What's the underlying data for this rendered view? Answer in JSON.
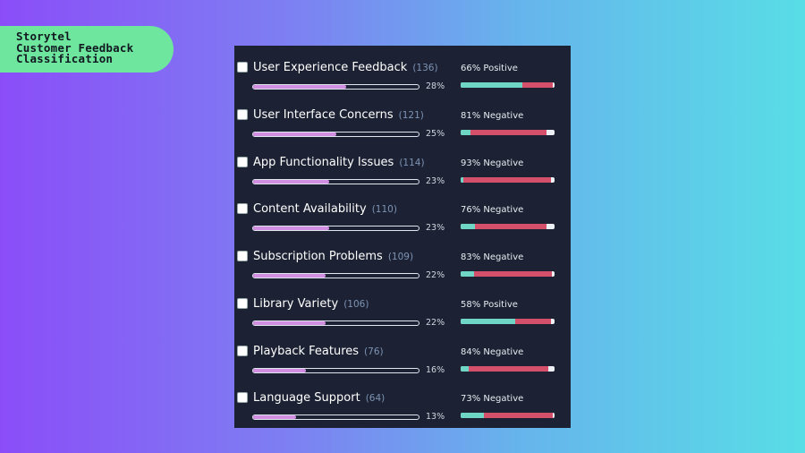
{
  "title_lines": [
    "Storytel",
    "Customer Feedback",
    "Classification"
  ],
  "rows": [
    {
      "name": "User Experience Feedback",
      "count": "(136)",
      "pct_label": "28%",
      "share": 0.28,
      "sentiment_label": "66% Positive",
      "pos": 0.66,
      "neg": 0.32
    },
    {
      "name": "User Interface Concerns",
      "count": "(121)",
      "pct_label": "25%",
      "share": 0.25,
      "sentiment_label": "81% Negative",
      "pos": 0.1,
      "neg": 0.81
    },
    {
      "name": "App Functionality Issues",
      "count": "(114)",
      "pct_label": "23%",
      "share": 0.23,
      "sentiment_label": "93% Negative",
      "pos": 0.03,
      "neg": 0.93
    },
    {
      "name": "Content Availability",
      "count": "(110)",
      "pct_label": "23%",
      "share": 0.23,
      "sentiment_label": "76% Negative",
      "pos": 0.15,
      "neg": 0.76
    },
    {
      "name": "Subscription Problems",
      "count": "(109)",
      "pct_label": "22%",
      "share": 0.22,
      "sentiment_label": "83% Negative",
      "pos": 0.14,
      "neg": 0.83
    },
    {
      "name": "Library Variety",
      "count": "(106)",
      "pct_label": "22%",
      "share": 0.22,
      "sentiment_label": "58% Positive",
      "pos": 0.58,
      "neg": 0.38
    },
    {
      "name": "Playback Features",
      "count": "(76)",
      "pct_label": "16%",
      "share": 0.16,
      "sentiment_label": "84% Negative",
      "pos": 0.09,
      "neg": 0.84
    },
    {
      "name": "Language Support",
      "count": "(64)",
      "pct_label": "13%",
      "share": 0.13,
      "sentiment_label": "73% Negative",
      "pos": 0.25,
      "neg": 0.73
    }
  ],
  "colors": {
    "share_fill": "#d28ee0",
    "positive": "#6fd6c6",
    "negative": "#d4506a",
    "panel": "#1c2233",
    "pill": "#6fe69e"
  }
}
